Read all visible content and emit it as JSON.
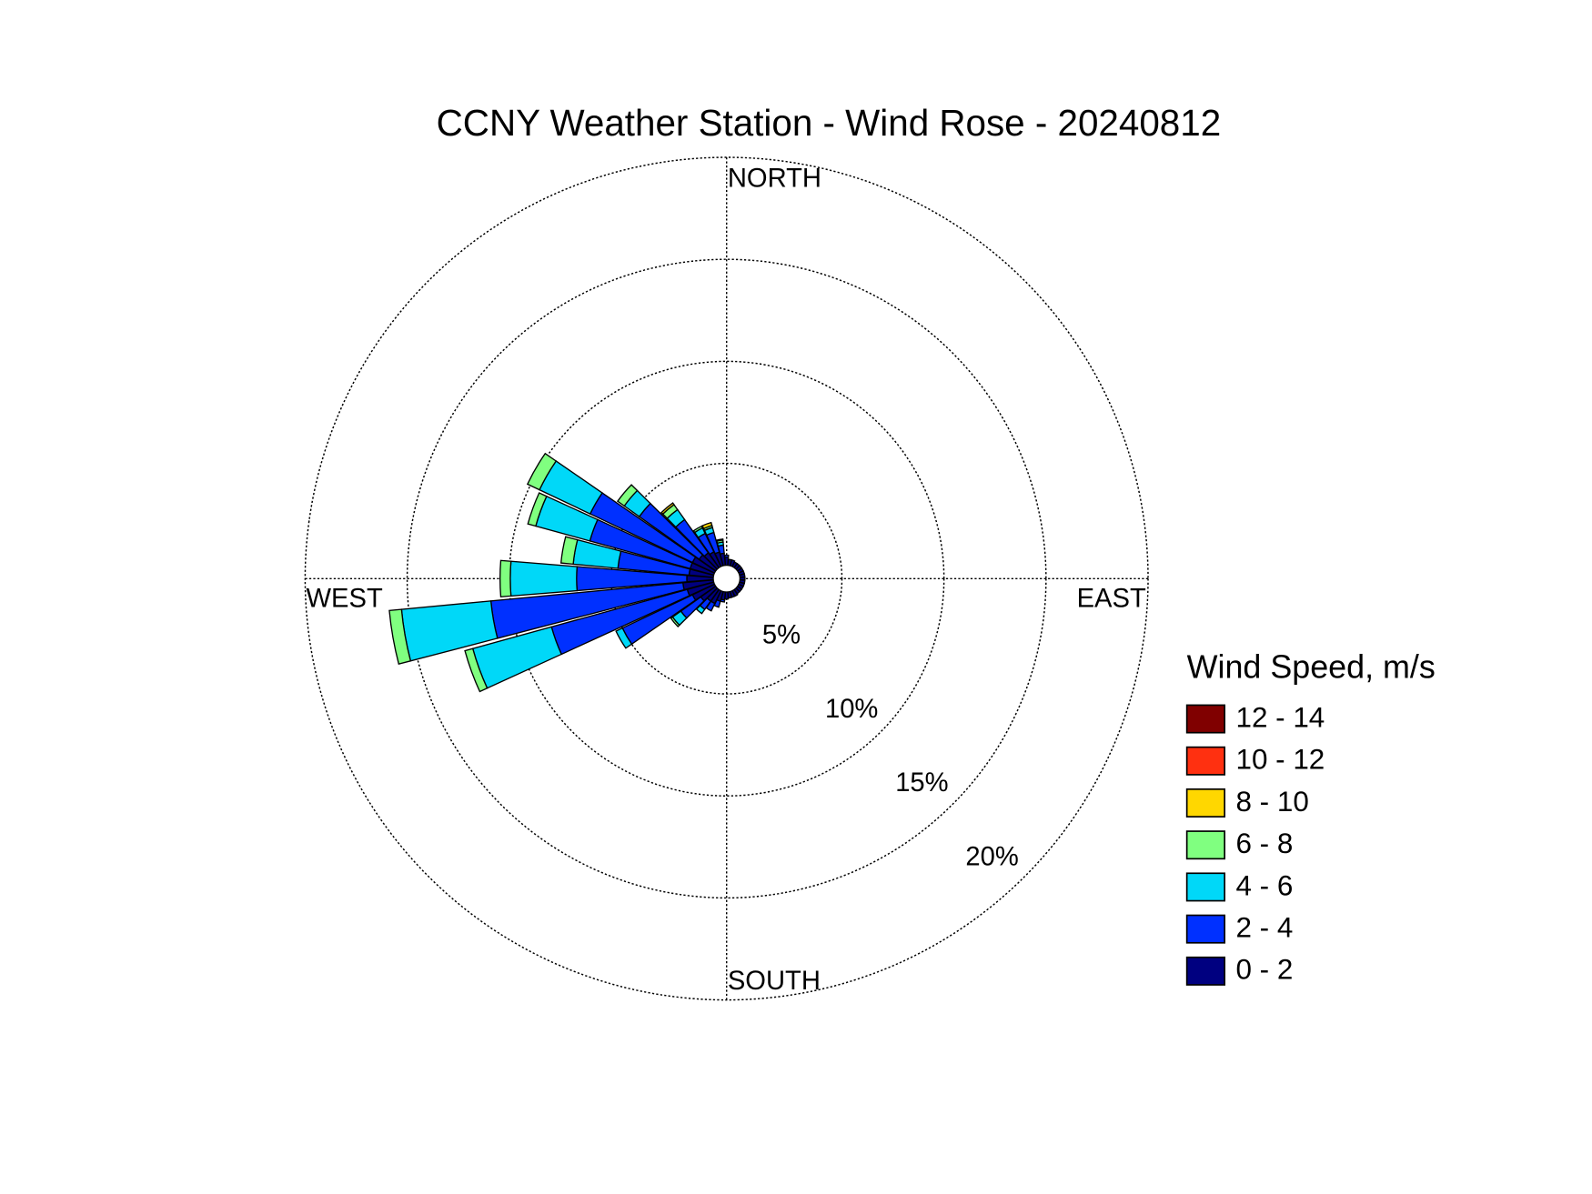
{
  "chart_data": {
    "type": "windrose",
    "title": "CCNY Weather Station - Wind Rose - 20240812",
    "direction_labels": [
      "NORTH",
      "EAST",
      "SOUTH",
      "WEST"
    ],
    "x": [
      0,
      10,
      20,
      30,
      40,
      50,
      60,
      70,
      80,
      90,
      100,
      110,
      120,
      130,
      140,
      150,
      160,
      170,
      180,
      190,
      200,
      210,
      220,
      230,
      240,
      250,
      260,
      270,
      280,
      290,
      300,
      310,
      320,
      330,
      340,
      350
    ],
    "rlim": [
      0,
      20
    ],
    "rticks": [
      {
        "value": 5,
        "label": "5%"
      },
      {
        "value": 10,
        "label": "10%"
      },
      {
        "value": 15,
        "label": "15%"
      },
      {
        "value": 20,
        "label": "20%"
      }
    ],
    "legend_title": "Wind Speed, m/s",
    "series": [
      {
        "name": "0 - 2",
        "color": "#000080",
        "values": [
          0.4,
          0.3,
          0.3,
          0.25,
          0.25,
          0.25,
          0.25,
          0.25,
          0.25,
          0.25,
          0.25,
          0.25,
          0.25,
          0.25,
          0.25,
          0.3,
          0.3,
          0.3,
          0.35,
          0.4,
          0.5,
          0.7,
          0.7,
          0.9,
          1.2,
          1.35,
          1.5,
          1.3,
          1.2,
          1.2,
          1.2,
          1.0,
          0.9,
          0.8,
          0.7,
          0.6
        ]
      },
      {
        "name": "2 - 4",
        "color": "#0030ff",
        "values": [
          0.1,
          0,
          0,
          0,
          0,
          0,
          0,
          0,
          0,
          0,
          0,
          0,
          0,
          0,
          0,
          0,
          0,
          0,
          0,
          0.1,
          0.3,
          0.4,
          0.5,
          1.2,
          3.8,
          6.9,
          9.45,
          5.4,
          3.5,
          5.1,
          5.55,
          3.6,
          2.0,
          1.0,
          1.0,
          0.4
        ]
      },
      {
        "name": "4 - 6",
        "color": "#00d8f8",
        "values": [
          0,
          0,
          0,
          0,
          0,
          0,
          0,
          0,
          0,
          0,
          0,
          0,
          0,
          0,
          0,
          0,
          0,
          0,
          0,
          0,
          0,
          0,
          0.25,
          0.5,
          0.35,
          4.0,
          4.4,
          3.25,
          2.2,
          2.75,
          2.75,
          0.9,
          0.6,
          0.3,
          0.25,
          0.15
        ]
      },
      {
        "name": "6 - 8",
        "color": "#80ff80",
        "values": [
          0,
          0,
          0,
          0,
          0,
          0,
          0,
          0,
          0,
          0,
          0,
          0,
          0,
          0,
          0,
          0,
          0,
          0,
          0,
          0,
          0,
          0,
          0,
          0.1,
          0,
          0.4,
          0.6,
          0.5,
          0.6,
          0.4,
          0.65,
          0.4,
          0.3,
          0.1,
          0.1,
          0.1
        ]
      },
      {
        "name": "8 - 10",
        "color": "#ffd700",
        "values": [
          0,
          0,
          0,
          0,
          0,
          0,
          0,
          0,
          0,
          0,
          0,
          0,
          0,
          0,
          0,
          0,
          0,
          0,
          0,
          0,
          0,
          0,
          0,
          0,
          0,
          0,
          0,
          0,
          0,
          0,
          0,
          0,
          0.1,
          0,
          0.15,
          0.05
        ]
      },
      {
        "name": "10 - 12",
        "color": "#ff3010",
        "values": [
          0,
          0,
          0,
          0,
          0,
          0,
          0,
          0,
          0,
          0,
          0,
          0,
          0,
          0,
          0,
          0,
          0,
          0,
          0,
          0,
          0,
          0,
          0,
          0,
          0,
          0,
          0,
          0,
          0,
          0,
          0,
          0,
          0,
          0,
          0,
          0
        ]
      },
      {
        "name": "12 - 14",
        "color": "#800000",
        "values": [
          0,
          0,
          0,
          0,
          0,
          0,
          0,
          0,
          0,
          0,
          0,
          0,
          0,
          0,
          0,
          0,
          0,
          0,
          0,
          0,
          0,
          0,
          0,
          0,
          0,
          0,
          0,
          0,
          0,
          0,
          0,
          0,
          0,
          0,
          0,
          0
        ]
      }
    ]
  }
}
